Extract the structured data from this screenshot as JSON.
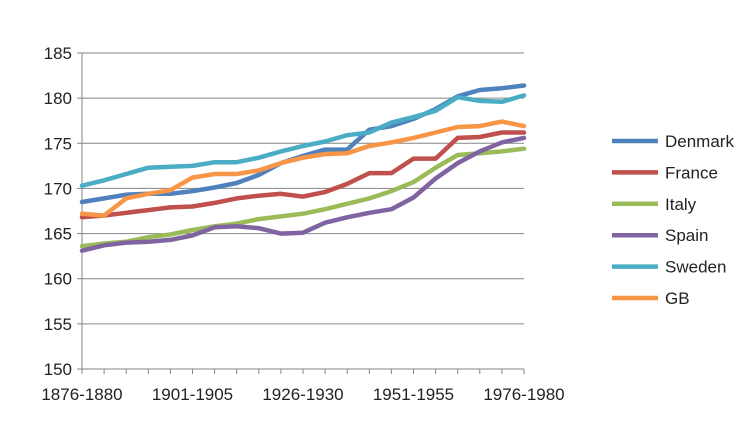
{
  "chart_data": {
    "type": "line",
    "title": "",
    "xlabel": "",
    "ylabel": "",
    "x": [
      "1876-1880",
      "1881-1885",
      "1886-1890",
      "1891-1895",
      "1896-1900",
      "1901-1905",
      "1906-1910",
      "1911-1915",
      "1916-1920",
      "1921-1925",
      "1926-1930",
      "1931-1935",
      "1936-1940",
      "1941-1945",
      "1946-1950",
      "1951-1955",
      "1956-1960",
      "1961-1965",
      "1966-1970",
      "1971-1975",
      "1976-1980"
    ],
    "x_tick_labels": [
      "1876-1880",
      "1901-1905",
      "1926-1930",
      "1951-1955",
      "1976-1980"
    ],
    "x_tick_indices": [
      0,
      5,
      10,
      15,
      20
    ],
    "ylim": [
      150,
      185
    ],
    "yticks": [
      150,
      155,
      160,
      165,
      170,
      175,
      180,
      185
    ],
    "grid": "horizontal",
    "legend_position": "right",
    "series": [
      {
        "name": "Denmark",
        "color": "#4f81bd",
        "values": [
          168.5,
          168.9,
          169.3,
          169.4,
          169.4,
          169.7,
          170.1,
          170.6,
          171.5,
          172.8,
          173.6,
          174.3,
          174.3,
          176.5,
          176.9,
          177.7,
          178.8,
          180.2,
          180.9,
          181.1,
          181.4
        ]
      },
      {
        "name": "France",
        "color": "#c0504d",
        "values": [
          166.8,
          167.0,
          167.3,
          167.6,
          167.9,
          168.0,
          168.4,
          168.9,
          169.2,
          169.4,
          169.1,
          169.6,
          170.5,
          171.7,
          171.7,
          173.3,
          173.3,
          175.6,
          175.7,
          176.2,
          176.2
        ]
      },
      {
        "name": "Italy",
        "color": "#9bbb59",
        "values": [
          163.6,
          163.9,
          164.1,
          164.6,
          164.9,
          165.4,
          165.8,
          166.1,
          166.6,
          166.9,
          167.2,
          167.7,
          168.3,
          168.9,
          169.7,
          170.7,
          172.3,
          173.7,
          173.9,
          174.1,
          174.4
        ]
      },
      {
        "name": "Spain",
        "color": "#8064a2",
        "values": [
          163.1,
          163.7,
          164.0,
          164.1,
          164.3,
          164.8,
          165.7,
          165.8,
          165.6,
          165.0,
          165.1,
          166.2,
          166.8,
          167.3,
          167.7,
          169.0,
          171.1,
          172.8,
          174.1,
          175.1,
          175.6
        ]
      },
      {
        "name": "Sweden",
        "color": "#4bacc6",
        "values": [
          170.3,
          170.9,
          171.6,
          172.3,
          172.4,
          172.5,
          172.9,
          172.9,
          173.4,
          174.1,
          174.7,
          175.2,
          175.9,
          176.2,
          177.3,
          177.9,
          178.6,
          180.1,
          179.7,
          179.6,
          180.3
        ]
      },
      {
        "name": "GB",
        "color": "#f79646",
        "values": [
          167.2,
          167.0,
          168.9,
          169.4,
          169.8,
          171.2,
          171.6,
          171.6,
          172.0,
          172.8,
          173.4,
          173.8,
          173.9,
          174.7,
          175.1,
          175.6,
          176.2,
          176.8,
          176.9,
          177.4,
          176.9
        ]
      }
    ]
  }
}
